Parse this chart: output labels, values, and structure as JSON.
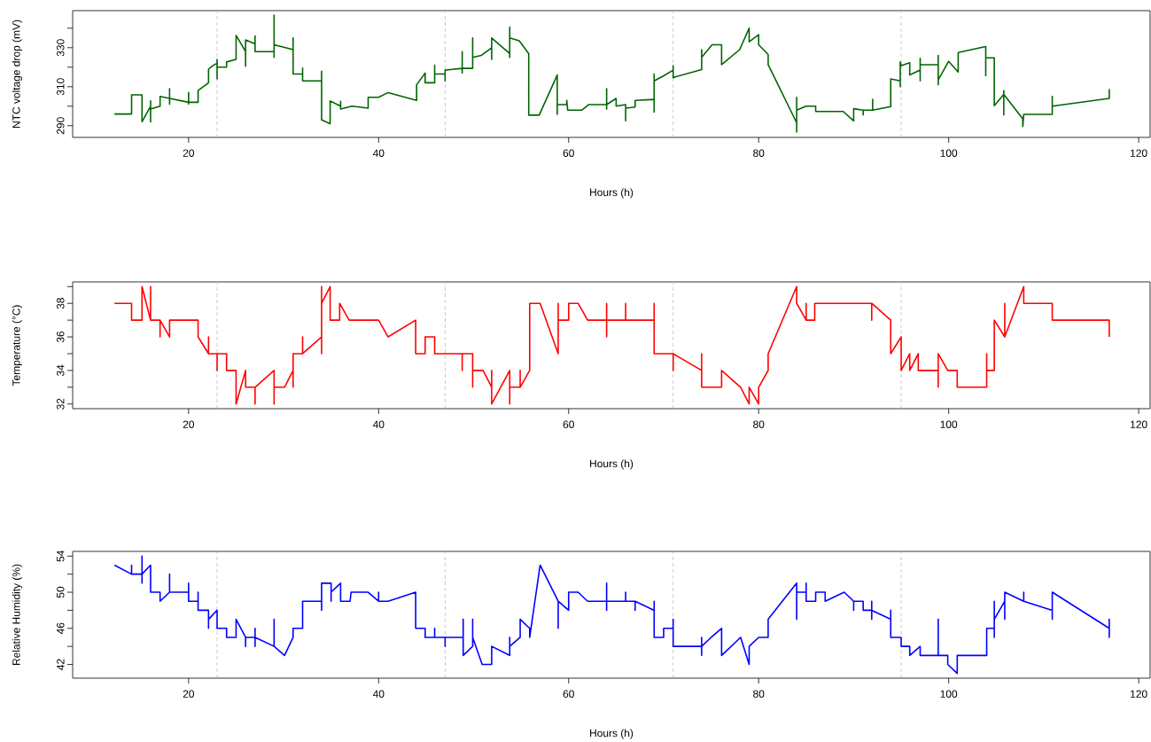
{
  "chart_data": [
    {
      "type": "line",
      "xlabel": "Hours (h)",
      "ylabel": "NTC voltage drop (mV)",
      "xlim": [
        7.8,
        121.2
      ],
      "xticks": [
        20,
        40,
        60,
        80,
        100,
        120
      ],
      "ylim": [
        284,
        349
      ],
      "yticks": [
        290,
        {
          "value": 300,
          "label": null
        },
        310,
        {
          "value": 320,
          "label": null
        },
        330,
        {
          "value": 340,
          "label": null
        }
      ],
      "grid": false,
      "marker": "none",
      "line_style": "solid",
      "ref_lines": [
        {
          "axis": "x",
          "value": 23,
          "color": "#bebebe",
          "line_style": "dashed"
        },
        {
          "axis": "x",
          "value": 47,
          "color": "#bebebe",
          "line_style": "dashed"
        },
        {
          "axis": "x",
          "value": 71,
          "color": "#bebebe",
          "line_style": "dashed"
        },
        {
          "axis": "x",
          "value": 95,
          "color": "#bebebe",
          "line_style": "dashed"
        }
      ],
      "series": [
        {
          "color": "#006400",
          "x": [
            12.2,
            14,
            14,
            15.1,
            15.1,
            16,
            16,
            16,
            16,
            17,
            17,
            18,
            18,
            18,
            18,
            20,
            20,
            20,
            20,
            21,
            21,
            22.1,
            22.1,
            22.6,
            23,
            23,
            23,
            23,
            24,
            24,
            25,
            25,
            26,
            26,
            26,
            26,
            27,
            27,
            27,
            29,
            29,
            29,
            29,
            30.2,
            31,
            31,
            31,
            32,
            32,
            32,
            34,
            34,
            34,
            34.9,
            34.9,
            36,
            36,
            36,
            37.2,
            38.9,
            38.9,
            40,
            41,
            44,
            44,
            44.9,
            44.9,
            45.9,
            45.9,
            45.9,
            47,
            47,
            47,
            48.8,
            48.8,
            48.8,
            48.8,
            49.9,
            49.9,
            49.9,
            50.8,
            51.9,
            51.9,
            51.9,
            51.9,
            53.8,
            53.8,
            53.8,
            53.8,
            54.8,
            55.8,
            55.8,
            56.9,
            58.8,
            58.8,
            58.8,
            59.8,
            59.8,
            59.9,
            61.4,
            62.1,
            64,
            64,
            64,
            64,
            65,
            65,
            66,
            66,
            66,
            67,
            67,
            69,
            69,
            69,
            69,
            70,
            71,
            71,
            71,
            71.2,
            74,
            74,
            74,
            75.1,
            76.1,
            76.1,
            78,
            79,
            79,
            80,
            80,
            81,
            81,
            84,
            84,
            84,
            84,
            85,
            86,
            86,
            88.9,
            90,
            90,
            91,
            91,
            91,
            92,
            92,
            92,
            93.9,
            93.9,
            94.9,
            94.9,
            94.9,
            95,
            95.9,
            95.9,
            97,
            97,
            97,
            97,
            98.9,
            98.9,
            98.9,
            98.9,
            100,
            101,
            101,
            103.9,
            103.9,
            103.9,
            104.8,
            104.8,
            105.8,
            105.8,
            105.8,
            105.8,
            107.8,
            107.8,
            107.9,
            110.9,
            110.9,
            110.9,
            116.9,
            116.9
          ],
          "values": [
            296,
            296,
            305.8,
            305.8,
            292,
            300,
            292,
            302.7,
            298.5,
            300,
            305,
            304,
            309,
            301,
            304,
            302,
            307,
            301,
            302,
            302,
            308,
            312,
            319,
            321,
            322,
            324,
            314,
            320,
            320,
            322.7,
            324,
            336.3,
            328,
            334,
            320.5,
            334,
            332,
            336,
            328,
            328,
            346.7,
            325,
            331.5,
            330,
            329,
            335,
            316.5,
            316.5,
            319.5,
            313,
            313,
            318,
            293,
            291,
            302.7,
            300,
            302.5,
            298.5,
            300,
            299,
            304.6,
            304.6,
            307,
            303,
            311,
            317,
            312,
            312,
            321,
            316.5,
            316.5,
            313,
            318.5,
            319.4,
            328,
            317,
            319.4,
            319.4,
            335,
            325,
            326,
            330,
            335,
            324,
            335,
            327,
            340.6,
            325,
            335,
            333.5,
            327,
            295.4,
            295.4,
            316,
            295.8,
            300.8,
            300.8,
            303,
            298,
            298,
            300.8,
            300.8,
            309,
            298.5,
            300.8,
            304,
            300,
            300.8,
            292.5,
            299,
            299.6,
            303,
            303.5,
            316.5,
            297,
            313,
            315.6,
            318.5,
            320.8,
            314.6,
            315,
            318.8,
            329,
            325,
            331.5,
            331.5,
            321.3,
            329,
            340,
            333,
            336.7,
            331.5,
            326.5,
            321.3,
            291.5,
            286.7,
            304.6,
            298,
            300,
            300,
            297.3,
            297.3,
            292.5,
            298.7,
            298,
            295.5,
            298,
            298,
            303.5,
            298,
            299.8,
            314,
            313,
            310,
            322.7,
            320.8,
            322.3,
            316,
            318.5,
            324.6,
            313,
            321.3,
            321.3,
            326,
            311,
            313.5,
            323,
            317.5,
            327.5,
            330.6,
            315.6,
            324.8,
            324.8,
            300.2,
            306,
            308,
            295.5,
            306,
            293.5,
            289.6,
            295.8,
            295.8,
            305,
            300,
            304,
            308.8
          ]
        }
      ]
    },
    {
      "type": "line",
      "xlabel": "Hours (h)",
      "ylabel": "Temperature (°C)",
      "xlim": [
        7.8,
        121.2
      ],
      "xticks": [
        20,
        40,
        60,
        80,
        100,
        120
      ],
      "ylim": [
        31.72,
        39.28
      ],
      "yticks": [
        32,
        {
          "value": 33,
          "label": null
        },
        34,
        {
          "value": 35,
          "label": null
        },
        36,
        {
          "value": 37,
          "label": null
        },
        38,
        {
          "value": 39,
          "label": null
        }
      ],
      "grid": false,
      "marker": "none",
      "line_style": "solid",
      "ref_lines": [
        {
          "axis": "x",
          "value": 23,
          "color": "#bebebe",
          "line_style": "dashed"
        },
        {
          "axis": "x",
          "value": 47,
          "color": "#bebebe",
          "line_style": "dashed"
        },
        {
          "axis": "x",
          "value": 71,
          "color": "#bebebe",
          "line_style": "dashed"
        },
        {
          "axis": "x",
          "value": 95,
          "color": "#bebebe",
          "line_style": "dashed"
        }
      ],
      "series": [
        {
          "color": "#ff0000",
          "x": [
            12.2,
            14,
            14,
            15.1,
            15.1,
            16,
            16,
            16,
            17,
            17,
            17,
            18,
            18,
            21,
            21,
            22.1,
            22.1,
            22.1,
            23,
            23,
            23,
            24,
            24,
            25,
            25,
            26,
            26,
            27,
            27,
            27,
            29,
            29,
            29,
            30.1,
            31,
            31,
            31,
            32,
            32,
            32,
            34,
            34,
            34,
            34,
            34.9,
            34.9,
            35.9,
            35.9,
            36.9,
            40,
            41,
            43.9,
            43.9,
            44.9,
            44.9,
            45.9,
            45.9,
            47,
            48.8,
            48.8,
            48.8,
            49.9,
            49.9,
            49.9,
            51,
            51.9,
            51.9,
            51.9,
            53.8,
            53.8,
            53.8,
            54.9,
            54.9,
            54.9,
            55.9,
            55.9,
            57,
            58.9,
            58.9,
            58.9,
            60,
            60,
            61,
            62,
            64,
            64,
            64,
            64,
            66,
            66,
            66,
            69,
            69,
            69,
            71,
            71,
            71,
            74,
            74,
            74,
            75,
            76.1,
            76.1,
            78.1,
            79,
            79,
            80,
            80,
            81,
            81,
            84,
            84,
            85,
            85,
            85,
            85.9,
            85.9,
            91.9,
            91.9,
            91.9,
            93.9,
            93.9,
            95,
            95,
            95.9,
            95.9,
            96.8,
            96.8,
            98.9,
            98.9,
            98.9,
            99.9,
            100.9,
            100.9,
            104,
            104,
            104,
            104.8,
            104.8,
            105.9,
            105.9,
            105.9,
            107.9,
            107.9,
            110.9,
            110.9,
            116.9,
            116.9
          ],
          "values": [
            38,
            38,
            37,
            37,
            39,
            37,
            39,
            37,
            37,
            36,
            37,
            36,
            37,
            37,
            36,
            35,
            36,
            35,
            35,
            34,
            35,
            35,
            34,
            34,
            32,
            34,
            33,
            33,
            32,
            33,
            34,
            32,
            33,
            33,
            34,
            33,
            35,
            35,
            36,
            35,
            36,
            35,
            39,
            38,
            39,
            37,
            37,
            38,
            37,
            37,
            36,
            37,
            35,
            35,
            36,
            36,
            35,
            35,
            35,
            34,
            35,
            35,
            33,
            34,
            34,
            33,
            34,
            32,
            34,
            32,
            33,
            33,
            34,
            33,
            34,
            38,
            38,
            35,
            38,
            37,
            37,
            38,
            38,
            37,
            37,
            38,
            36,
            37,
            37,
            38,
            37,
            37,
            38,
            35,
            35,
            34,
            35,
            34,
            35,
            33,
            33,
            33,
            34,
            33,
            32,
            33,
            32,
            33,
            34,
            35,
            39,
            38,
            37,
            38,
            37,
            37,
            38,
            38,
            37,
            38,
            37,
            35,
            36,
            34,
            35,
            34,
            35,
            34,
            34,
            33,
            35,
            34,
            34,
            33,
            33,
            35,
            34,
            34,
            37,
            36,
            38,
            36,
            39,
            38,
            38,
            37,
            37,
            36
          ]
        }
      ]
    },
    {
      "type": "line",
      "xlabel": "Hours (h)",
      "ylabel": "Relative Humidity (%)",
      "xlim": [
        7.8,
        121.2
      ],
      "xticks": [
        20,
        40,
        60,
        80,
        100,
        120
      ],
      "ylim": [
        40.48,
        54.52
      ],
      "yticks": [
        42,
        {
          "value": 44,
          "label": null
        },
        46,
        {
          "value": 48,
          "label": null
        },
        50,
        {
          "value": 52,
          "label": null
        },
        54
      ],
      "grid": false,
      "marker": "none",
      "line_style": "solid",
      "ref_lines": [
        {
          "axis": "x",
          "value": 23,
          "color": "#bebebe",
          "line_style": "dashed"
        },
        {
          "axis": "x",
          "value": 47,
          "color": "#bebebe",
          "line_style": "dashed"
        },
        {
          "axis": "x",
          "value": 71,
          "color": "#bebebe",
          "line_style": "dashed"
        },
        {
          "axis": "x",
          "value": 95,
          "color": "#bebebe",
          "line_style": "dashed"
        }
      ],
      "series": [
        {
          "color": "#0000ff",
          "x": [
            12.2,
            14,
            14,
            14,
            15.1,
            15.1,
            15.1,
            15.1,
            16,
            16,
            17,
            17,
            18,
            18,
            18,
            20,
            20,
            20,
            21,
            21,
            21,
            22.1,
            22.1,
            22.1,
            23,
            23,
            24,
            24,
            25,
            25,
            26,
            26,
            26,
            27,
            27,
            27,
            27,
            29,
            29,
            29,
            30.1,
            31,
            31,
            32,
            32,
            34,
            34,
            34,
            35,
            35,
            35,
            36,
            36,
            37,
            37.1,
            38.9,
            40,
            40,
            40,
            41,
            43.9,
            43.9,
            44.9,
            44.9,
            45.9,
            45.9,
            45.9,
            47,
            47,
            47,
            48.9,
            48.9,
            48.9,
            49.9,
            49.9,
            49.9,
            50.9,
            51.9,
            51.9,
            53.8,
            53.8,
            53.8,
            54.9,
            54.9,
            55.9,
            55.9,
            57,
            58.9,
            58.9,
            58.9,
            60,
            60,
            61,
            62,
            64,
            64,
            64,
            64,
            66,
            66,
            66,
            67,
            67,
            67,
            69,
            69,
            69,
            70,
            70,
            71,
            71,
            71,
            74,
            74,
            74,
            74,
            75,
            76.1,
            76.1,
            78.1,
            79,
            79,
            80,
            81,
            81,
            84,
            84,
            84,
            85,
            85,
            85,
            86,
            86,
            87,
            87,
            89,
            90,
            90,
            90,
            91,
            91,
            91.9,
            91.9,
            91.9,
            91.9,
            93.9,
            93.9,
            93.9,
            95,
            95,
            95.9,
            95.9,
            97,
            97,
            98.9,
            98.9,
            98.9,
            99.9,
            99.9,
            100.9,
            100.9,
            104,
            104,
            104.8,
            104.8,
            104.8,
            104.8,
            105.9,
            105.9,
            105.9,
            105.9,
            107.9,
            107.9,
            107.9,
            110.9,
            110.9,
            110.9,
            110.9,
            116.9,
            116.9,
            116.9,
            116.9
          ],
          "values": [
            53,
            52,
            53,
            52,
            52,
            54,
            51,
            52,
            53,
            50,
            50,
            49,
            50,
            52,
            50,
            50,
            51,
            49,
            49,
            50,
            48,
            48,
            46,
            47,
            48,
            46,
            46,
            45,
            45,
            47,
            45,
            44,
            45,
            45,
            46,
            44,
            45,
            44,
            47,
            44,
            43,
            45,
            46,
            46,
            49,
            49,
            48,
            51,
            51,
            49,
            50,
            51,
            49,
            49,
            50,
            50,
            49,
            50,
            49,
            49,
            50,
            46,
            46,
            45,
            45,
            46,
            45,
            45,
            44,
            45,
            45,
            47,
            43,
            44,
            47,
            45,
            42,
            42,
            44,
            43,
            45,
            44,
            45,
            47,
            46,
            45,
            53,
            49,
            46,
            49,
            48,
            50,
            50,
            49,
            49,
            51,
            48,
            49,
            49,
            50,
            49,
            49,
            48,
            49,
            48,
            49,
            45,
            45,
            46,
            46,
            47,
            44,
            44,
            45,
            43,
            44,
            45,
            46,
            43,
            45,
            42,
            44,
            45,
            45,
            47,
            51,
            47,
            50,
            50,
            51,
            49,
            49,
            50,
            50,
            49,
            50,
            49,
            48,
            49,
            49,
            48,
            48,
            49,
            47,
            48,
            47,
            48,
            45,
            45,
            44,
            44,
            43,
            44,
            43,
            43,
            47,
            43,
            43,
            42,
            41,
            43,
            43,
            46,
            46,
            49,
            45,
            47,
            49,
            50,
            47,
            50,
            49,
            50,
            49,
            48,
            50,
            47,
            50,
            46,
            47,
            45,
            46
          ]
        }
      ]
    }
  ]
}
